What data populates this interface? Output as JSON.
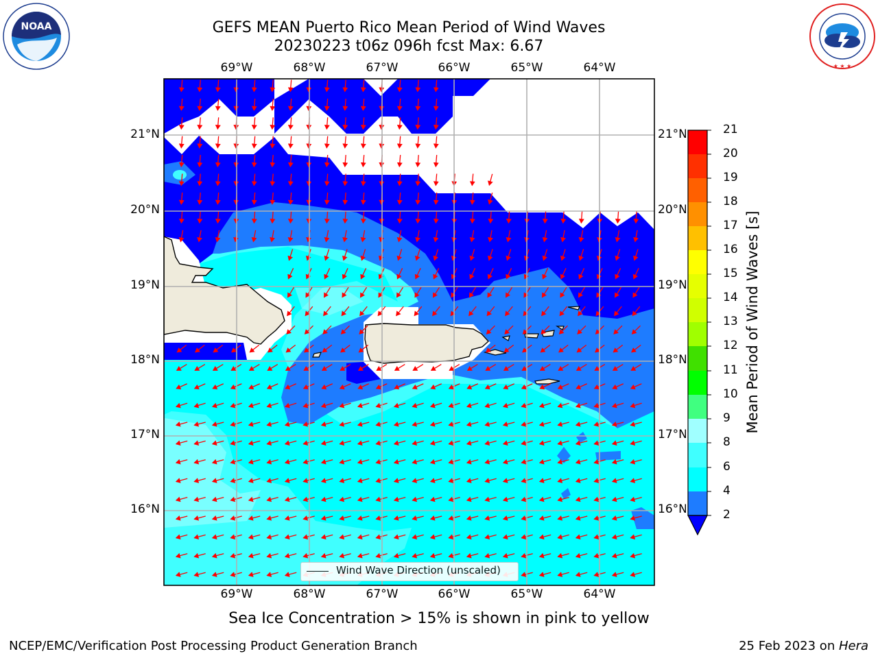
{
  "title": {
    "line1": "GEFS MEAN Puerto Rico Mean Period of Wind Waves",
    "line2": "20230223 t06z 096h fcst   Max: 6.67"
  },
  "logos": {
    "left": {
      "name": "noaa-logo",
      "text": "NOAA",
      "ring_text": "NATIONAL OCEANIC AND ATMOSPHERIC ADMINISTRATION · U.S. DEPARTMENT OF COMMERCE"
    },
    "right": {
      "name": "nws-logo",
      "ring_text": "NATIONAL WEATHER SERVICE"
    }
  },
  "map": {
    "lon_ticks": [
      "69°W",
      "68°W",
      "67°W",
      "66°W",
      "65°W",
      "64°W"
    ],
    "lat_ticks": [
      "21°N",
      "20°N",
      "19°N",
      "18°N",
      "17°N",
      "16°N"
    ],
    "extent": {
      "lon": [
        -70.0,
        -63.25
      ],
      "lat": [
        15.0,
        21.75
      ]
    },
    "legend_label": "Wind Wave Direction (unscaled)",
    "land_color": "#efebdc",
    "arrow_color": "#ff0000",
    "grid": true
  },
  "colorbar": {
    "label": "Mean Period of Wind Waves [s]",
    "ticks": [
      "21",
      "20",
      "19",
      "18",
      "17",
      "16",
      "15",
      "14",
      "13",
      "12",
      "11",
      "10",
      "9",
      "8",
      "6",
      "4",
      "2"
    ],
    "levels": [
      {
        "from": 2,
        "to": 4,
        "color": "#1e7cff"
      },
      {
        "from": 4,
        "to": 6,
        "color": "#00ffff"
      },
      {
        "from": 6,
        "to": 8,
        "color": "#40ffff"
      },
      {
        "from": 8,
        "to": 9,
        "color": "#a0ffff"
      },
      {
        "from": 9,
        "to": 10,
        "color": "#40ff80"
      },
      {
        "from": 10,
        "to": 11,
        "color": "#00ff00"
      },
      {
        "from": 11,
        "to": 12,
        "color": "#40e000"
      },
      {
        "from": 12,
        "to": 13,
        "color": "#a0ff00"
      },
      {
        "from": 13,
        "to": 14,
        "color": "#d0ff00"
      },
      {
        "from": 14,
        "to": 15,
        "color": "#e6ff00"
      },
      {
        "from": 15,
        "to": 16,
        "color": "#ffff00"
      },
      {
        "from": 16,
        "to": 17,
        "color": "#ffc000"
      },
      {
        "from": 17,
        "to": 18,
        "color": "#ff9000"
      },
      {
        "from": 18,
        "to": 19,
        "color": "#ff6000"
      },
      {
        "from": 19,
        "to": 20,
        "color": "#ff3000"
      },
      {
        "from": 20,
        "to": 21,
        "color": "#ff0000"
      }
    ],
    "under_color": "#0000ff"
  },
  "note": "Sea Ice Concentration > 15% is shown in pink to yellow",
  "footer": {
    "left": "NCEP/EMC/Verification Post Processing Product Generation Branch",
    "right_prefix": "25 Feb 2023 on ",
    "right_machine": "Hera"
  }
}
